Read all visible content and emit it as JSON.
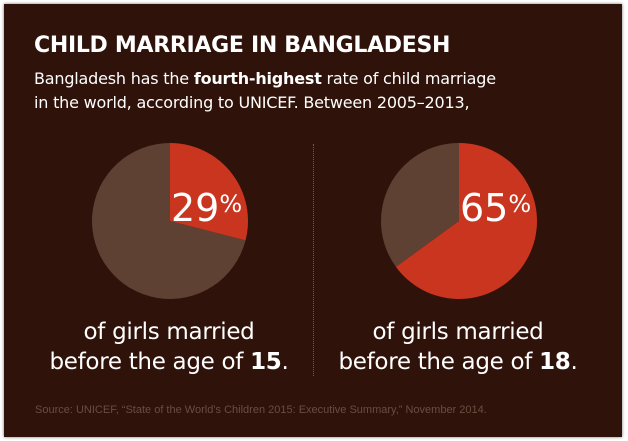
{
  "title": "CHILD MARRIAGE IN BANGLADESH",
  "subtitle": {
    "line1_before": "Bangladesh has the ",
    "line1_bold": "fourth-highest",
    "line1_after": " rate of child marriage",
    "line2": "in the world, according to UNICEF. Between 2005–2013,"
  },
  "colors": {
    "background": "#2f120a",
    "highlight": "#c9351f",
    "remainder": "#5e4133",
    "text": "#ffffff",
    "source": "#6b4d40"
  },
  "chart_data": [
    {
      "type": "pie",
      "value_percent": 29,
      "value_label": "29",
      "percent_sign": "%",
      "caption_line1": "of girls married",
      "caption_line2_before": "before the age of ",
      "caption_line2_bold": "15",
      "caption_line2_after": "."
    },
    {
      "type": "pie",
      "value_percent": 65,
      "value_label": "65",
      "percent_sign": "%",
      "caption_line1": "of girls married",
      "caption_line2_before": "before the age of ",
      "caption_line2_bold": "18",
      "caption_line2_after": "."
    }
  ],
  "source": "Source: UNICEF, “State of the World’s Children 2015: Executive Summary,” November 2014."
}
